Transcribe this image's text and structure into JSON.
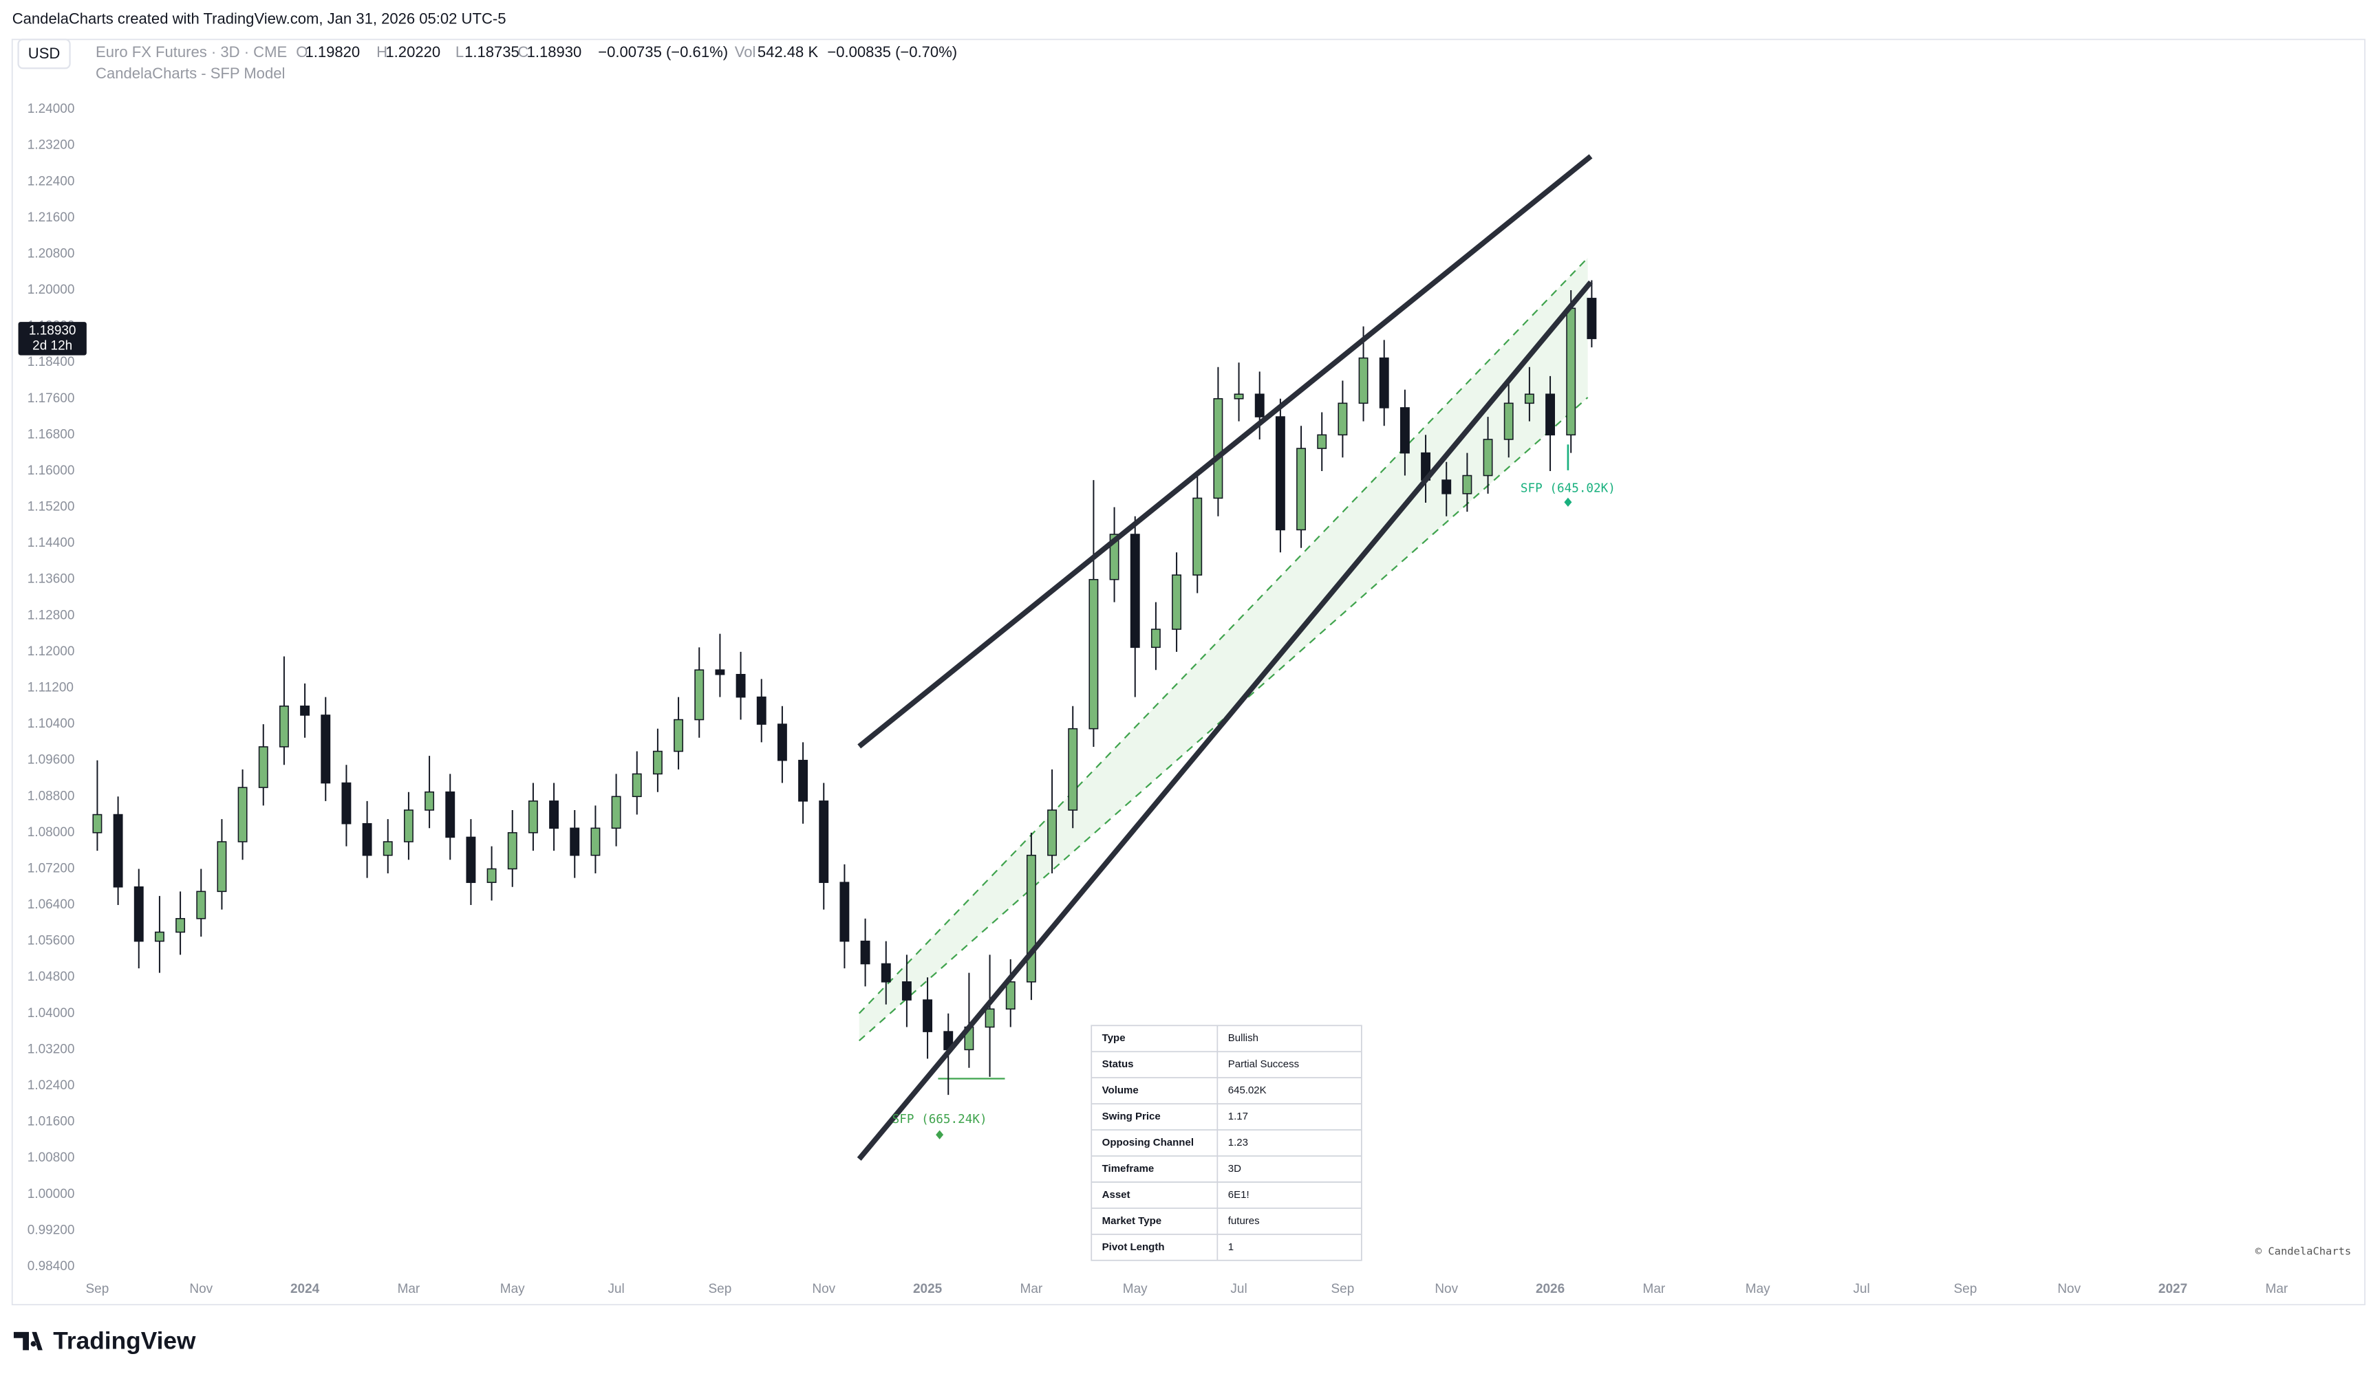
{
  "header": {
    "credit": "CandelaCharts created with TradingView.com, Jan 31, 2026 05:02 UTC-5",
    "currency": "USD",
    "symbol": "Euro FX Futures · 3D · CME",
    "ohlc": [
      {
        "key": "O",
        "value": "1.19820"
      },
      {
        "key": "H",
        "value": "1.20220"
      },
      {
        "key": "L",
        "value": "1.18735"
      },
      {
        "key": "C",
        "value": "1.18930"
      }
    ],
    "change": "−0.00735 (−0.61%)",
    "vol_key": "Vol",
    "vol": "542.48 K",
    "vol_change": "−0.00835 (−0.70%)",
    "indicator": "CandelaCharts - SFP Model"
  },
  "chart_data": {
    "type": "candlestick",
    "x": [
      0,
      0.4,
      0.8,
      1.2,
      1.6,
      2,
      2.4,
      2.8,
      3.2,
      3.6,
      4,
      4.4,
      4.8,
      5.2,
      5.6,
      6,
      6.4,
      6.8,
      7.2,
      7.6,
      8,
      8.4,
      8.8,
      9.2,
      9.6,
      10,
      10.4,
      10.8,
      11.2,
      11.6,
      12,
      12.4,
      12.8,
      13.2,
      13.6,
      14,
      14.4,
      14.8,
      15.2,
      15.6,
      16,
      16.4,
      16.8,
      17.2,
      17.6,
      18,
      18.4,
      18.8,
      19.2,
      19.6,
      20,
      20.4,
      20.8,
      21.2,
      21.6,
      22,
      22.4,
      22.8,
      23.2,
      23.6,
      24,
      24.4,
      24.8,
      25.2,
      25.6,
      26,
      26.4,
      26.8,
      27.2,
      27.6,
      28,
      28.4,
      28.8
    ],
    "open": [
      1.08,
      1.084,
      1.068,
      1.056,
      1.058,
      1.061,
      1.067,
      1.078,
      1.09,
      1.099,
      1.108,
      1.106,
      1.091,
      1.082,
      1.075,
      1.078,
      1.085,
      1.089,
      1.079,
      1.069,
      1.072,
      1.08,
      1.087,
      1.081,
      1.075,
      1.081,
      1.088,
      1.093,
      1.098,
      1.105,
      1.116,
      1.115,
      1.11,
      1.104,
      1.096,
      1.087,
      1.069,
      1.056,
      1.051,
      1.047,
      1.043,
      1.036,
      1.032,
      1.037,
      1.041,
      1.047,
      1.075,
      1.085,
      1.103,
      1.136,
      1.146,
      1.121,
      1.125,
      1.137,
      1.154,
      1.176,
      1.177,
      1.172,
      1.147,
      1.165,
      1.168,
      1.175,
      1.185,
      1.174,
      1.164,
      1.158,
      1.155,
      1.159,
      1.167,
      1.175,
      1.177,
      1.168,
      1.1982
    ],
    "high": [
      1.096,
      1.088,
      1.072,
      1.066,
      1.067,
      1.072,
      1.083,
      1.094,
      1.104,
      1.119,
      1.113,
      1.11,
      1.095,
      1.087,
      1.083,
      1.089,
      1.097,
      1.093,
      1.083,
      1.077,
      1.085,
      1.091,
      1.091,
      1.085,
      1.086,
      1.093,
      1.098,
      1.103,
      1.11,
      1.121,
      1.124,
      1.12,
      1.114,
      1.108,
      1.1,
      1.091,
      1.073,
      1.061,
      1.056,
      1.053,
      1.048,
      1.04,
      1.049,
      1.053,
      1.052,
      1.08,
      1.094,
      1.108,
      1.158,
      1.152,
      1.15,
      1.131,
      1.142,
      1.159,
      1.183,
      1.184,
      1.182,
      1.176,
      1.17,
      1.173,
      1.18,
      1.192,
      1.189,
      1.178,
      1.168,
      1.162,
      1.164,
      1.172,
      1.18,
      1.183,
      1.181,
      1.2,
      1.2022
    ],
    "low": [
      1.076,
      1.064,
      1.05,
      1.049,
      1.053,
      1.057,
      1.063,
      1.074,
      1.086,
      1.095,
      1.101,
      1.087,
      1.077,
      1.07,
      1.071,
      1.074,
      1.081,
      1.074,
      1.064,
      1.065,
      1.068,
      1.076,
      1.076,
      1.07,
      1.071,
      1.077,
      1.084,
      1.089,
      1.094,
      1.101,
      1.11,
      1.105,
      1.1,
      1.091,
      1.082,
      1.063,
      1.05,
      1.046,
      1.042,
      1.037,
      1.03,
      1.022,
      1.028,
      1.026,
      1.037,
      1.043,
      1.071,
      1.081,
      1.099,
      1.131,
      1.11,
      1.116,
      1.12,
      1.133,
      1.15,
      1.171,
      1.167,
      1.142,
      1.143,
      1.16,
      1.163,
      1.171,
      1.17,
      1.159,
      1.153,
      1.15,
      1.151,
      1.155,
      1.163,
      1.171,
      1.16,
      1.164,
      1.18735
    ],
    "close": [
      1.084,
      1.068,
      1.056,
      1.058,
      1.061,
      1.067,
      1.078,
      1.09,
      1.099,
      1.108,
      1.106,
      1.091,
      1.082,
      1.075,
      1.078,
      1.085,
      1.089,
      1.079,
      1.069,
      1.072,
      1.08,
      1.087,
      1.081,
      1.075,
      1.081,
      1.088,
      1.093,
      1.098,
      1.105,
      1.116,
      1.115,
      1.11,
      1.104,
      1.096,
      1.087,
      1.069,
      1.056,
      1.051,
      1.047,
      1.043,
      1.036,
      1.032,
      1.037,
      1.041,
      1.047,
      1.075,
      1.085,
      1.103,
      1.136,
      1.146,
      1.121,
      1.125,
      1.137,
      1.154,
      1.176,
      1.177,
      1.172,
      1.147,
      1.165,
      1.168,
      1.175,
      1.185,
      1.174,
      1.164,
      1.158,
      1.155,
      1.159,
      1.167,
      1.175,
      1.177,
      1.168,
      1.196,
      1.1893
    ],
    "xlim": [
      -1.64,
      43.7
    ],
    "xticks": [
      {
        "value": 0,
        "label": "Sep"
      },
      {
        "value": 2,
        "label": "Nov"
      },
      {
        "value": 4,
        "label": "2024"
      },
      {
        "value": 6,
        "label": "Mar"
      },
      {
        "value": 8,
        "label": "May"
      },
      {
        "value": 10,
        "label": "Jul"
      },
      {
        "value": 12,
        "label": "Sep"
      },
      {
        "value": 14,
        "label": "Nov"
      },
      {
        "value": 16,
        "label": "2025"
      },
      {
        "value": 18,
        "label": "Mar"
      },
      {
        "value": 20,
        "label": "May"
      },
      {
        "value": 22,
        "label": "Jul"
      },
      {
        "value": 24,
        "label": "Sep"
      },
      {
        "value": 26,
        "label": "Nov"
      },
      {
        "value": 28,
        "label": "2026"
      },
      {
        "value": 30,
        "label": "Mar"
      },
      {
        "value": 32,
        "label": "May"
      },
      {
        "value": 34,
        "label": "Jul"
      },
      {
        "value": 36,
        "label": "Sep"
      },
      {
        "value": 38,
        "label": "Nov"
      },
      {
        "value": 40,
        "label": "2027"
      },
      {
        "value": 42,
        "label": "Mar"
      }
    ],
    "ylim": [
      0.9813,
      1.2548
    ],
    "yticks": [
      {
        "value": 0.984,
        "label": "0.98400"
      },
      {
        "value": 0.992,
        "label": "0.99200"
      },
      {
        "value": 1.0,
        "label": "1.00000"
      },
      {
        "value": 1.008,
        "label": "1.00800"
      },
      {
        "value": 1.016,
        "label": "1.01600"
      },
      {
        "value": 1.024,
        "label": "1.02400"
      },
      {
        "value": 1.032,
        "label": "1.03200"
      },
      {
        "value": 1.04,
        "label": "1.04000"
      },
      {
        "value": 1.048,
        "label": "1.04800"
      },
      {
        "value": 1.056,
        "label": "1.05600"
      },
      {
        "value": 1.064,
        "label": "1.06400"
      },
      {
        "value": 1.072,
        "label": "1.07200"
      },
      {
        "value": 1.08,
        "label": "1.08000"
      },
      {
        "value": 1.088,
        "label": "1.08800"
      },
      {
        "value": 1.096,
        "label": "1.09600"
      },
      {
        "value": 1.104,
        "label": "1.10400"
      },
      {
        "value": 1.112,
        "label": "1.11200"
      },
      {
        "value": 1.12,
        "label": "1.12000"
      },
      {
        "value": 1.128,
        "label": "1.12800"
      },
      {
        "value": 1.136,
        "label": "1.13600"
      },
      {
        "value": 1.144,
        "label": "1.14400"
      },
      {
        "value": 1.152,
        "label": "1.15200"
      },
      {
        "value": 1.16,
        "label": "1.16000"
      },
      {
        "value": 1.168,
        "label": "1.16800"
      },
      {
        "value": 1.176,
        "label": "1.17600"
      },
      {
        "value": 1.184,
        "label": "1.18400"
      },
      {
        "value": 1.192,
        "label": "1.19200"
      },
      {
        "value": 1.2,
        "label": "1.20000"
      },
      {
        "value": 1.208,
        "label": "1.20800"
      },
      {
        "value": 1.216,
        "label": "1.21600"
      },
      {
        "value": 1.224,
        "label": "1.22400"
      },
      {
        "value": 1.232,
        "label": "1.23200"
      },
      {
        "value": 1.24,
        "label": "1.24000"
      }
    ],
    "grid": false,
    "up_color": "#7ab878",
    "down_color": "#131722",
    "outline_color": "#131722",
    "last_price_label": "1.18930",
    "countdown": "2d 12h",
    "annotations": [
      "SFP (665.24K)",
      "SFP (645.02K)"
    ],
    "watermark": "© CandelaCharts"
  },
  "table": {
    "rows": [
      [
        "Type",
        "Bullish"
      ],
      [
        "Status",
        "Partial Success"
      ],
      [
        "Volume",
        "645.02K"
      ],
      [
        "Swing Price",
        "1.17"
      ],
      [
        "Opposing Channel",
        "1.23"
      ],
      [
        "Timeframe",
        "3D"
      ],
      [
        "Asset",
        "6E1!"
      ],
      [
        "Market Type",
        "futures"
      ],
      [
        "Pivot Length",
        "1"
      ]
    ]
  },
  "footer": {
    "logo": "TradingView"
  }
}
